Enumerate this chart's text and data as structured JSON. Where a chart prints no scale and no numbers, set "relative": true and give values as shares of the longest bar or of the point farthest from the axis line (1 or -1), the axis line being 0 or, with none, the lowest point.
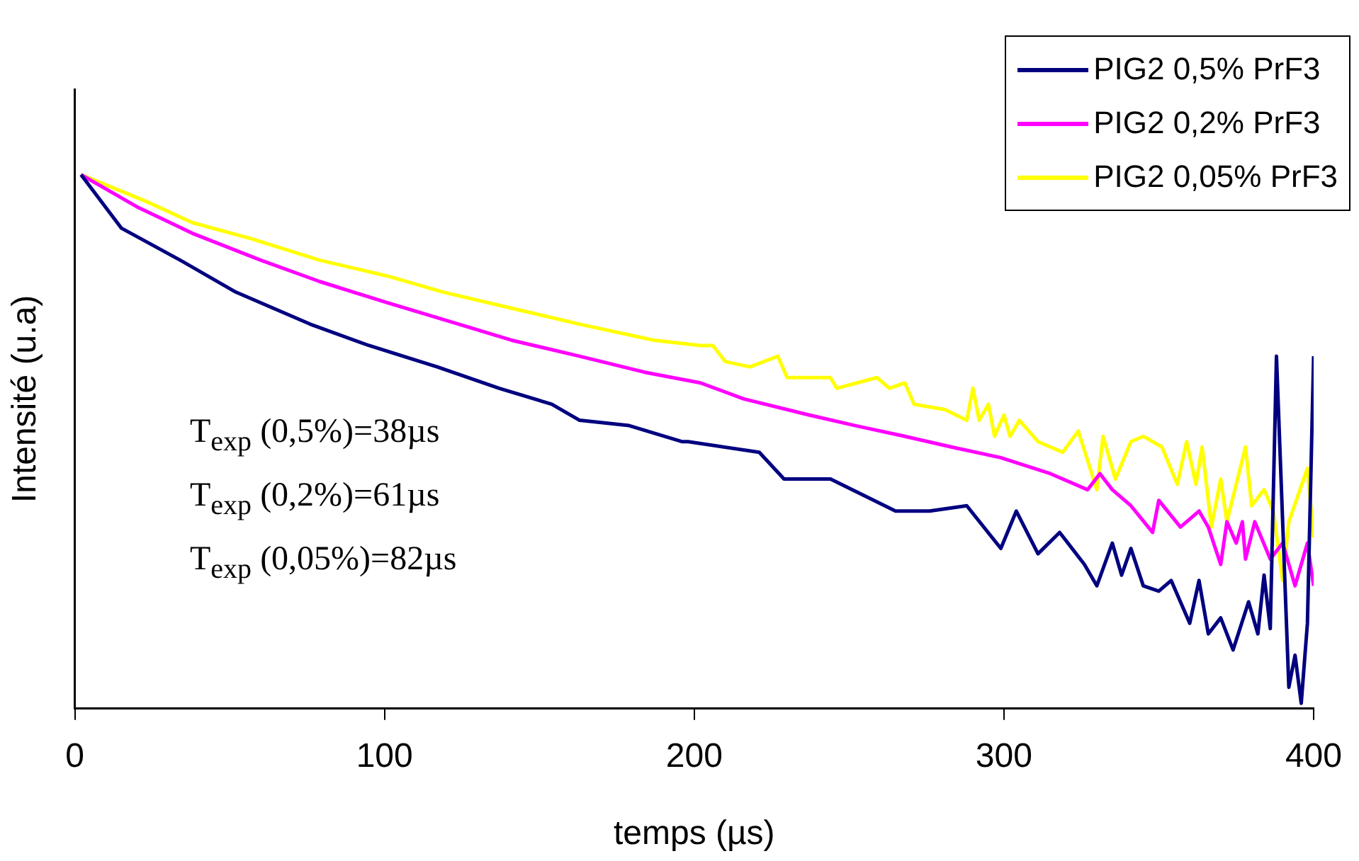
{
  "chart_data": {
    "type": "line",
    "xlabel": "temps (µs)",
    "ylabel": "Intensité (u.a)",
    "relative": true,
    "xlim": [
      0,
      400
    ],
    "xticks": [
      0,
      100,
      200,
      300,
      400
    ],
    "grid": false,
    "legend": "top right",
    "annotations": [
      "T$_{exp}$ (0,5%)=38µs",
      "T$_{exp}$ (0,2%)=61µs",
      "T$_{exp}$ (0,05%)=82µs"
    ],
    "series": [
      {
        "name": "PIG2 0,5% PrF3",
        "color": "#000080",
        "x": [
          2,
          15,
          34,
          52,
          76,
          95,
          117,
          137,
          154,
          163,
          179,
          196,
          198,
          221,
          229,
          244,
          265,
          276,
          288,
          299,
          304,
          311,
          318,
          326,
          330,
          335,
          338,
          341,
          345,
          350,
          354,
          360,
          363,
          366,
          370,
          374,
          379,
          382,
          384,
          386,
          388,
          392,
          394,
          396,
          398,
          400
        ],
        "values": [
          1.0,
          0.9,
          0.84,
          0.78,
          0.72,
          0.68,
          0.64,
          0.6,
          0.57,
          0.54,
          0.53,
          0.5,
          0.5,
          0.48,
          0.43,
          0.43,
          0.37,
          0.37,
          0.38,
          0.3,
          0.37,
          0.29,
          0.33,
          0.27,
          0.23,
          0.31,
          0.25,
          0.3,
          0.23,
          0.22,
          0.24,
          0.16,
          0.24,
          0.14,
          0.17,
          0.11,
          0.2,
          0.14,
          0.25,
          0.15,
          0.66,
          0.04,
          0.1,
          0.01,
          0.16,
          0.66
        ]
      },
      {
        "name": "PIG2 0,2% PrF3",
        "color": "#ff00ff",
        "x": [
          2,
          20,
          38,
          60,
          79,
          101,
          124,
          141,
          163,
          184,
          202,
          216,
          237,
          252,
          268,
          283,
          299,
          315,
          327,
          331,
          335,
          341,
          348,
          350,
          357,
          363,
          366,
          370,
          372,
          375,
          377,
          378,
          381,
          386,
          390,
          394,
          398,
          400
        ],
        "values": [
          1.0,
          0.94,
          0.89,
          0.84,
          0.8,
          0.76,
          0.72,
          0.69,
          0.66,
          0.63,
          0.61,
          0.58,
          0.55,
          0.53,
          0.51,
          0.49,
          0.47,
          0.44,
          0.41,
          0.44,
          0.41,
          0.38,
          0.33,
          0.39,
          0.34,
          0.37,
          0.34,
          0.27,
          0.35,
          0.31,
          0.35,
          0.28,
          0.35,
          0.28,
          0.31,
          0.23,
          0.31,
          0.23
        ]
      },
      {
        "name": "PIG2 0,05% PrF3",
        "color": "#ffff00",
        "x": [
          2,
          23,
          38,
          57,
          79,
          101,
          119,
          141,
          163,
          187,
          202,
          206,
          210,
          218,
          227,
          230,
          244,
          246,
          259,
          263,
          268,
          271,
          281,
          288,
          290,
          292,
          295,
          297,
          300,
          302,
          305,
          311,
          319,
          324,
          330,
          332,
          336,
          341,
          345,
          351,
          356,
          359,
          362,
          364,
          367,
          370,
          372,
          378,
          380,
          384,
          387,
          390,
          392,
          398,
          400
        ],
        "values": [
          1.0,
          0.95,
          0.91,
          0.88,
          0.84,
          0.81,
          0.78,
          0.75,
          0.72,
          0.69,
          0.68,
          0.68,
          0.65,
          0.64,
          0.66,
          0.62,
          0.62,
          0.6,
          0.62,
          0.6,
          0.61,
          0.57,
          0.56,
          0.54,
          0.6,
          0.54,
          0.57,
          0.51,
          0.55,
          0.51,
          0.54,
          0.5,
          0.48,
          0.52,
          0.41,
          0.51,
          0.43,
          0.5,
          0.51,
          0.49,
          0.42,
          0.5,
          0.42,
          0.49,
          0.34,
          0.43,
          0.35,
          0.49,
          0.38,
          0.41,
          0.37,
          0.24,
          0.35,
          0.45,
          0.32
        ]
      }
    ]
  }
}
